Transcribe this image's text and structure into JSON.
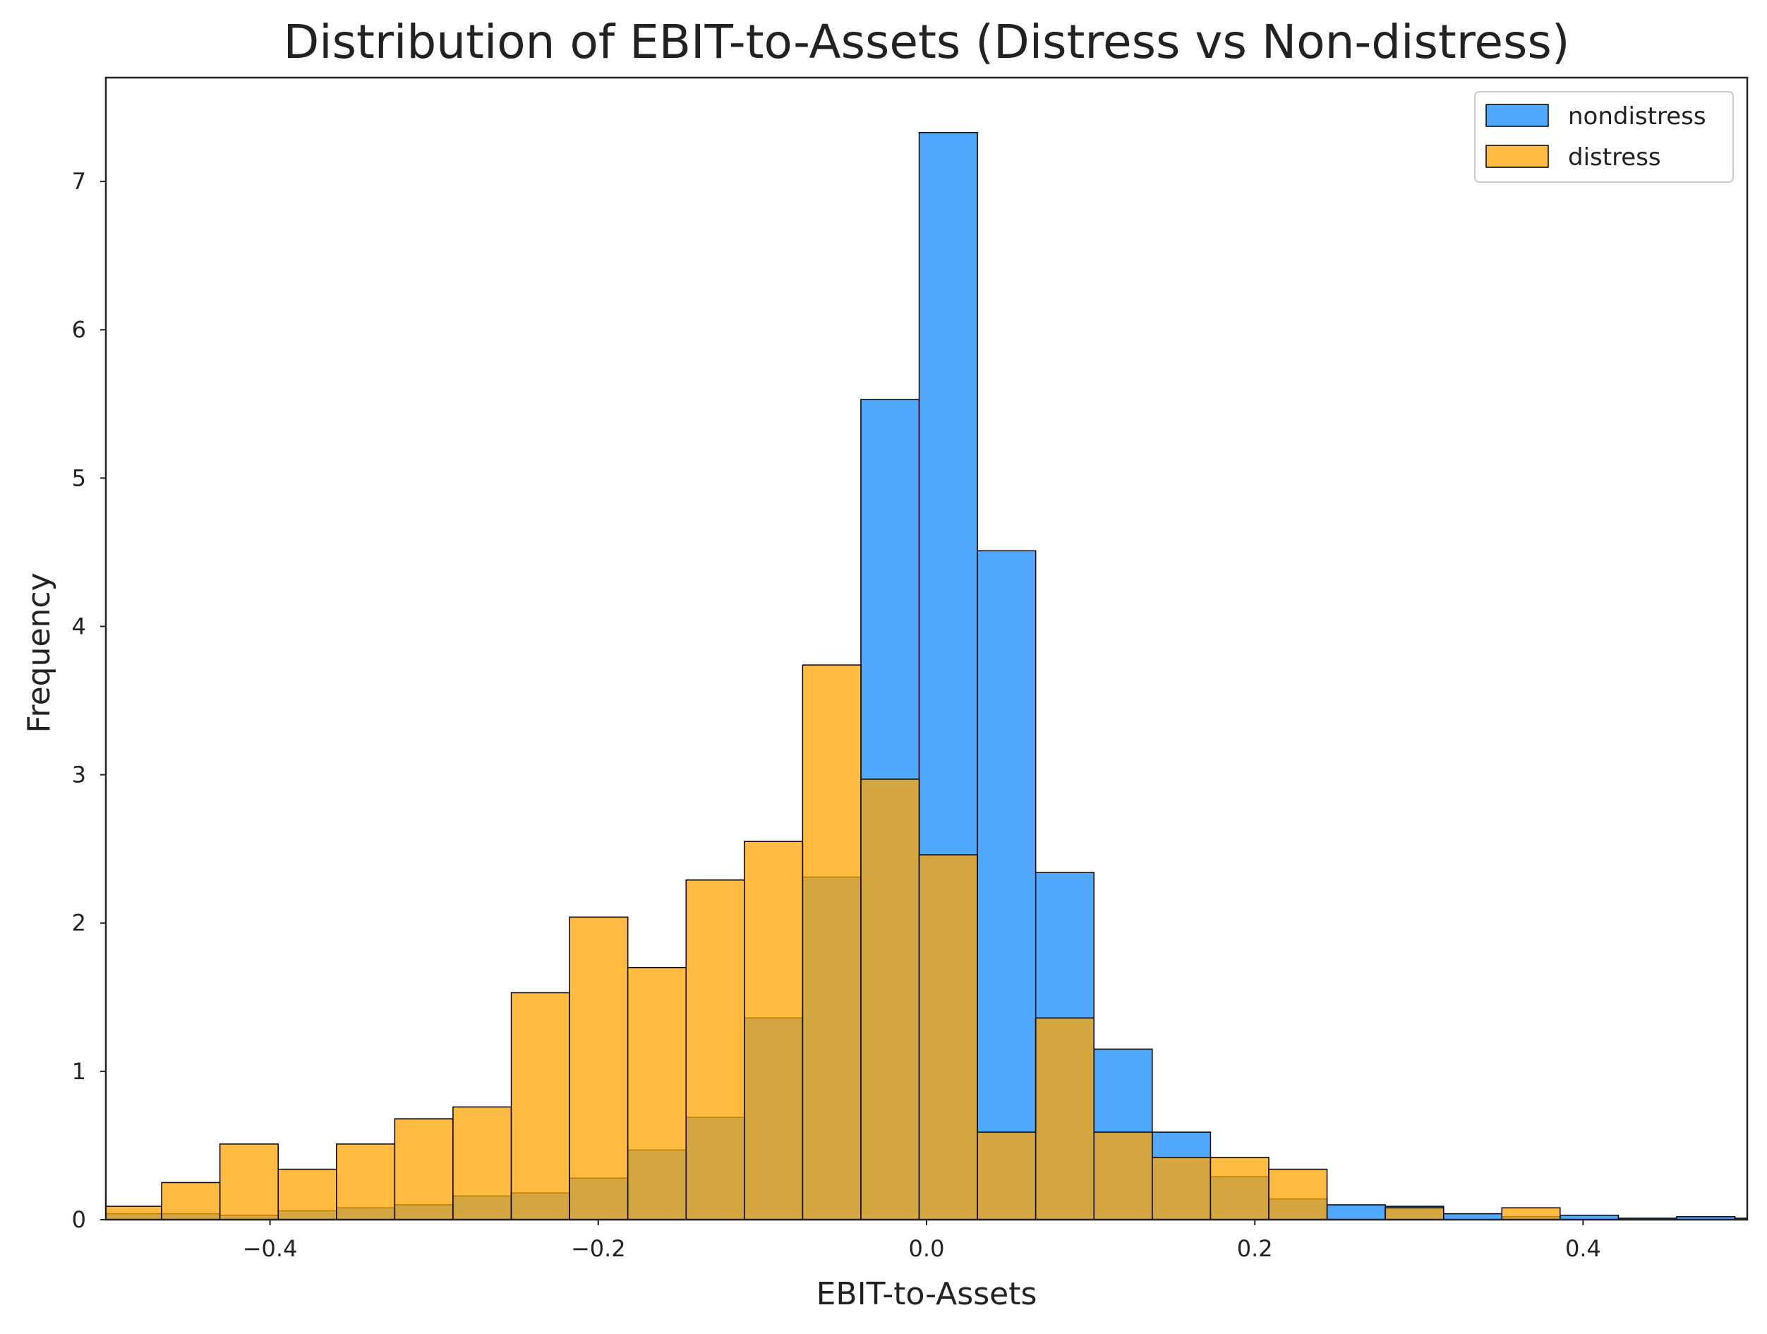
{
  "chart_data": {
    "type": "histogram",
    "title": "Distribution of EBIT-to-Assets (Distress vs Non-distress)",
    "xlabel": "EBIT-to-Assets",
    "ylabel": "Frequency",
    "xlim": [
      -0.5,
      0.5
    ],
    "ylim": [
      0,
      7.7
    ],
    "grid": false,
    "legend_position": "top-right",
    "x_ticks": [
      -0.4,
      -0.2,
      0.0,
      0.2,
      0.4
    ],
    "x_tick_labels": [
      "−0.4",
      "−0.2",
      "0.0",
      "0.2",
      "0.4"
    ],
    "y_ticks": [
      0,
      1,
      2,
      3,
      4,
      5,
      6,
      7
    ],
    "y_tick_labels": [
      "0",
      "1",
      "2",
      "3",
      "4",
      "5",
      "6",
      "7"
    ],
    "bin_edges": [
      -0.537,
      -0.5015,
      -0.466,
      -0.4305,
      -0.395,
      -0.3595,
      -0.324,
      -0.2885,
      -0.253,
      -0.2175,
      -0.182,
      -0.1465,
      -0.111,
      -0.0755,
      -0.04,
      -0.0045,
      0.031,
      0.0665,
      0.102,
      0.1375,
      0.173,
      0.2085,
      0.244,
      0.2795,
      0.315,
      0.3505,
      0.386,
      0.4215,
      0.457,
      0.4925,
      0.528
    ],
    "series": [
      {
        "name": "nondistress",
        "color": "#3399ff",
        "values": [
          0.02,
          0.04,
          0.04,
          0.03,
          0.06,
          0.08,
          0.1,
          0.16,
          0.18,
          0.28,
          0.47,
          0.69,
          1.36,
          2.31,
          5.53,
          7.33,
          4.51,
          2.34,
          1.15,
          0.59,
          0.29,
          0.14,
          0.1,
          0.09,
          0.04,
          0.02,
          0.03,
          0.01,
          0.02,
          0.01
        ]
      },
      {
        "name": "distress",
        "color": "#ffa500",
        "values": [
          0.34,
          0.09,
          0.25,
          0.51,
          0.34,
          0.51,
          0.68,
          0.76,
          1.53,
          2.04,
          1.7,
          2.29,
          2.55,
          3.74,
          2.97,
          2.46,
          0.59,
          1.36,
          0.59,
          0.42,
          0.42,
          0.34,
          0.0,
          0.08,
          0.0,
          0.08,
          0.0,
          0.0,
          0.0,
          0.0
        ]
      }
    ]
  }
}
